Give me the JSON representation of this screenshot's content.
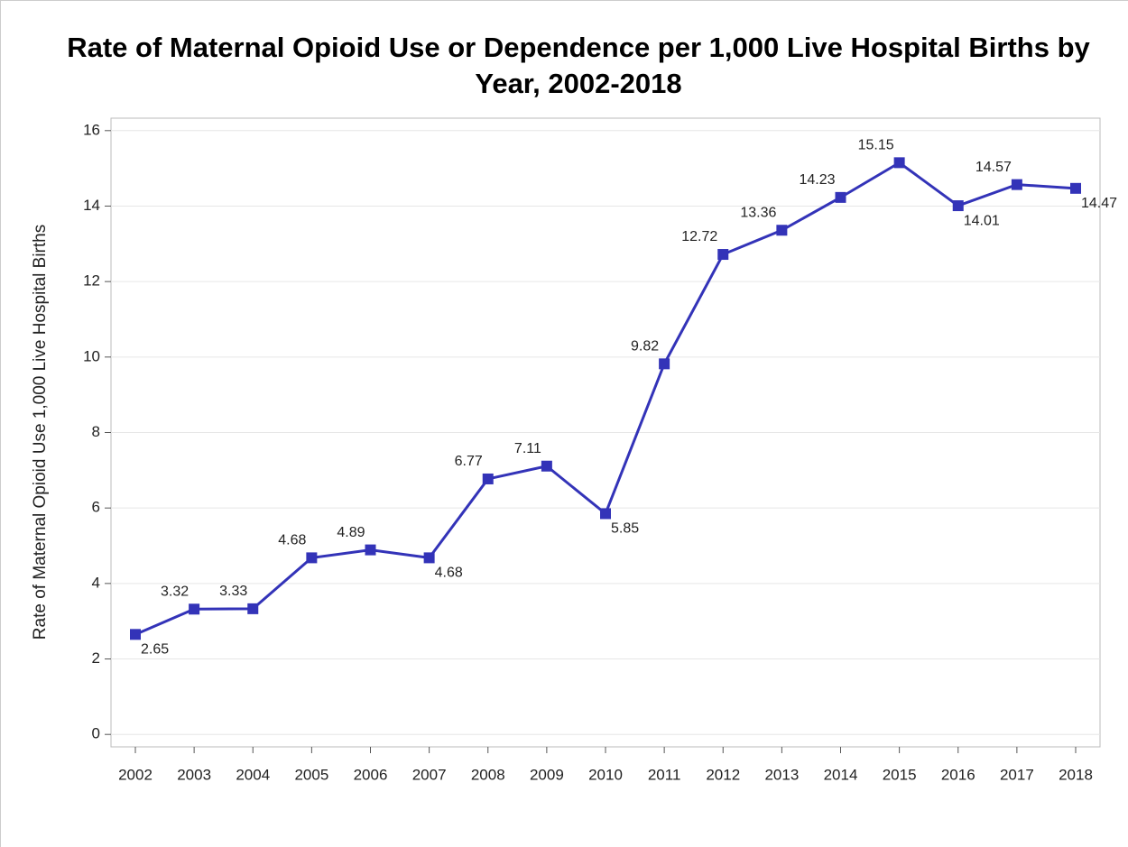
{
  "chart_data": {
    "type": "line",
    "title": "Rate of Maternal Opioid Use or Dependence per 1,000 Live Hospital Births by Year, 2002-2018",
    "y_label": "Rate of Maternal Opioid Use 1,000 Live Hospital Births",
    "categories": [
      "2002",
      "2003",
      "2004",
      "2005",
      "2006",
      "2007",
      "2008",
      "2009",
      "2010",
      "2011",
      "2012",
      "2013",
      "2014",
      "2015",
      "2016",
      "2017",
      "2018"
    ],
    "series": [
      {
        "name": "Rate",
        "color": "#3333b8",
        "values": [
          2.65,
          3.32,
          3.33,
          4.68,
          4.89,
          4.68,
          6.77,
          7.11,
          5.85,
          9.82,
          12.72,
          13.36,
          14.23,
          15.15,
          14.01,
          14.57,
          14.47
        ]
      }
    ],
    "ylim": [
      -0.33,
      16.33
    ],
    "yticks": [
      0,
      2,
      4,
      6,
      8,
      10,
      12,
      14,
      16
    ],
    "grid": true
  }
}
